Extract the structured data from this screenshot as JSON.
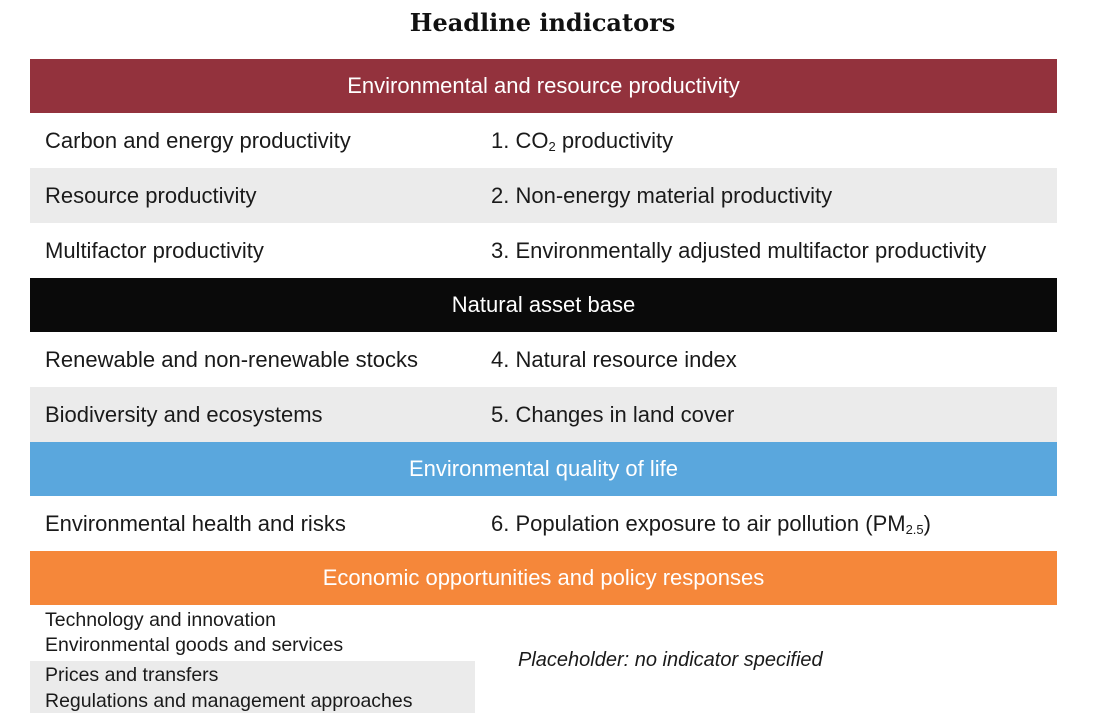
{
  "title": "Headline indicators",
  "sections": {
    "productivity": {
      "header": "Environmental and resource productivity",
      "rows": [
        {
          "label": "Carbon and energy productivity",
          "indicator_prefix": "1. CO",
          "indicator_sub": "2",
          "indicator_suffix": " productivity"
        },
        {
          "label": "Resource productivity",
          "indicator": "2. Non-energy material productivity"
        },
        {
          "label": "Multifactor productivity",
          "indicator": "3. Environmentally adjusted multifactor productivity"
        }
      ]
    },
    "natural": {
      "header": "Natural asset base",
      "rows": [
        {
          "label": "Renewable and non-renewable stocks",
          "indicator": "4. Natural resource index"
        },
        {
          "label": "Biodiversity and ecosystems",
          "indicator": "5. Changes in land cover"
        }
      ]
    },
    "quality": {
      "header": "Environmental quality of life",
      "rows": [
        {
          "label": "Environmental health and risks",
          "indicator_prefix": "6. Population exposure to air pollution (PM",
          "indicator_sub": "2.5",
          "indicator_suffix": ")"
        }
      ]
    },
    "economic": {
      "header": "Economic opportunities and policy responses",
      "lines": [
        "Technology and innovation",
        "Environmental goods and services",
        "Prices and transfers",
        "Regulations and management approaches"
      ],
      "placeholder": "Placeholder: no indicator specified"
    }
  },
  "colors": {
    "productivity": "#93323d",
    "natural": "#0a0a0a",
    "quality": "#5aa7dd",
    "economic": "#f5873a",
    "row_shade": "#ebebeb"
  }
}
